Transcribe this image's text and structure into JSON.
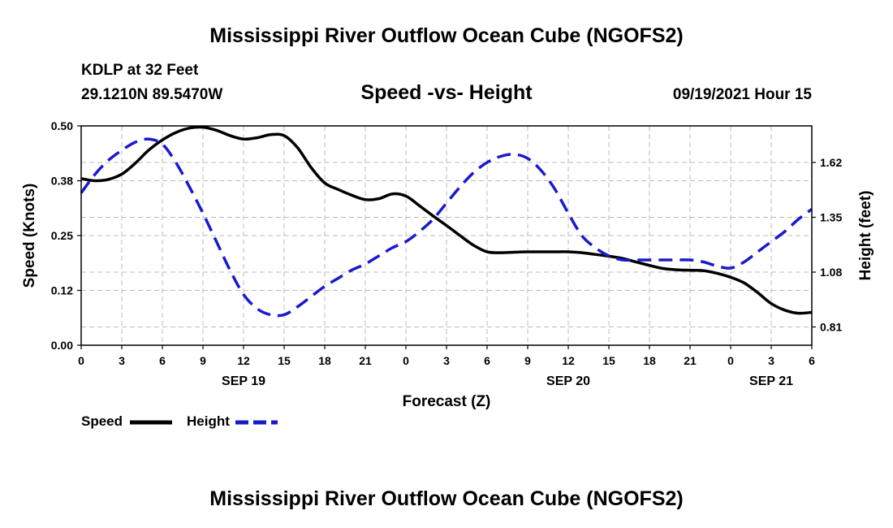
{
  "header": {
    "title": "Mississippi River Outflow Ocean Cube (NGOFS2)",
    "station": "KDLP at 32 Feet",
    "coords": "29.1210N  89.5470W",
    "chart_title": "Speed -vs- Height",
    "datetime": "09/19/2021 Hour 15"
  },
  "footer": {
    "title": "Mississippi River Outflow Ocean Cube (NGOFS2)"
  },
  "legend": {
    "speed_label": "Speed",
    "height_label": "Height"
  },
  "colors": {
    "speed": "#000000",
    "height": "#1a1acc",
    "grid": "#bbbbbb"
  },
  "chart_data": {
    "type": "line",
    "title": "Speed -vs- Height",
    "xlabel": "Forecast (Z)",
    "ylabel": "Speed (Knots)",
    "y2label": "Height (feet)",
    "xlim": [
      0,
      54
    ],
    "ylim": [
      0,
      0.5
    ],
    "y2lim": [
      0.72,
      1.8
    ],
    "x_ticks": [
      0,
      3,
      6,
      9,
      12,
      15,
      18,
      21,
      24,
      27,
      30,
      33,
      36,
      39,
      42,
      45,
      48,
      51,
      54
    ],
    "x_tick_labels": [
      "0",
      "3",
      "6",
      "9",
      "12",
      "15",
      "18",
      "21",
      "0",
      "3",
      "6",
      "9",
      "12",
      "15",
      "18",
      "21",
      "0",
      "3",
      "6"
    ],
    "day_labels": [
      {
        "x": 12,
        "label": "SEP 19"
      },
      {
        "x": 36,
        "label": "SEP 20"
      },
      {
        "x": 51,
        "label": "SEP 21"
      }
    ],
    "y_ticks": [
      0.0,
      0.125,
      0.25,
      0.375,
      0.5
    ],
    "y_tick_labels": [
      "0.00",
      "0.12",
      "0.25",
      "0.38",
      "0.50"
    ],
    "y2_ticks": [
      0.81,
      1.08,
      1.35,
      1.62
    ],
    "y2_tick_labels": [
      "0.81",
      "1.08",
      "1.35",
      "1.62"
    ],
    "grid": true,
    "series": [
      {
        "name": "Speed",
        "axis": "left",
        "style": "solid",
        "x": [
          0,
          1,
          2,
          3,
          4,
          5,
          6,
          7,
          8,
          9,
          10,
          11,
          12,
          13,
          14,
          15,
          16,
          17,
          18,
          19,
          20,
          21,
          22,
          23,
          24,
          25,
          26,
          27,
          28,
          29,
          30,
          31,
          32,
          33,
          34,
          35,
          36,
          37,
          38,
          39,
          40,
          41,
          42,
          43,
          44,
          45,
          46,
          47,
          48,
          49,
          50,
          51,
          52,
          53,
          54
        ],
        "values": [
          0.38,
          0.375,
          0.378,
          0.39,
          0.415,
          0.445,
          0.468,
          0.485,
          0.495,
          0.497,
          0.49,
          0.478,
          0.47,
          0.473,
          0.48,
          0.478,
          0.45,
          0.405,
          0.37,
          0.355,
          0.342,
          0.332,
          0.334,
          0.345,
          0.34,
          0.318,
          0.295,
          0.273,
          0.25,
          0.228,
          0.213,
          0.211,
          0.212,
          0.213,
          0.213,
          0.213,
          0.213,
          0.211,
          0.207,
          0.203,
          0.198,
          0.19,
          0.182,
          0.175,
          0.172,
          0.171,
          0.17,
          0.164,
          0.155,
          0.142,
          0.12,
          0.095,
          0.08,
          0.073,
          0.075
        ]
      },
      {
        "name": "Height",
        "axis": "right",
        "style": "dashed",
        "x": [
          0,
          1,
          2,
          3,
          4,
          5,
          6,
          7,
          8,
          9,
          10,
          11,
          12,
          13,
          14,
          15,
          16,
          17,
          18,
          19,
          20,
          21,
          22,
          23,
          24,
          25,
          26,
          27,
          28,
          29,
          30,
          31,
          32,
          33,
          34,
          35,
          36,
          37,
          38,
          39,
          40,
          41,
          42,
          43,
          44,
          45,
          46,
          47,
          48,
          49,
          50,
          51,
          52,
          53,
          54
        ],
        "values": [
          1.47,
          1.56,
          1.63,
          1.68,
          1.72,
          1.735,
          1.71,
          1.62,
          1.5,
          1.37,
          1.23,
          1.09,
          0.97,
          0.9,
          0.87,
          0.87,
          0.91,
          0.96,
          1.01,
          1.05,
          1.09,
          1.12,
          1.16,
          1.2,
          1.23,
          1.28,
          1.34,
          1.42,
          1.5,
          1.57,
          1.62,
          1.65,
          1.66,
          1.64,
          1.58,
          1.49,
          1.37,
          1.26,
          1.2,
          1.16,
          1.14,
          1.14,
          1.14,
          1.14,
          1.14,
          1.14,
          1.13,
          1.11,
          1.1,
          1.13,
          1.18,
          1.23,
          1.28,
          1.34,
          1.39
        ]
      }
    ]
  }
}
